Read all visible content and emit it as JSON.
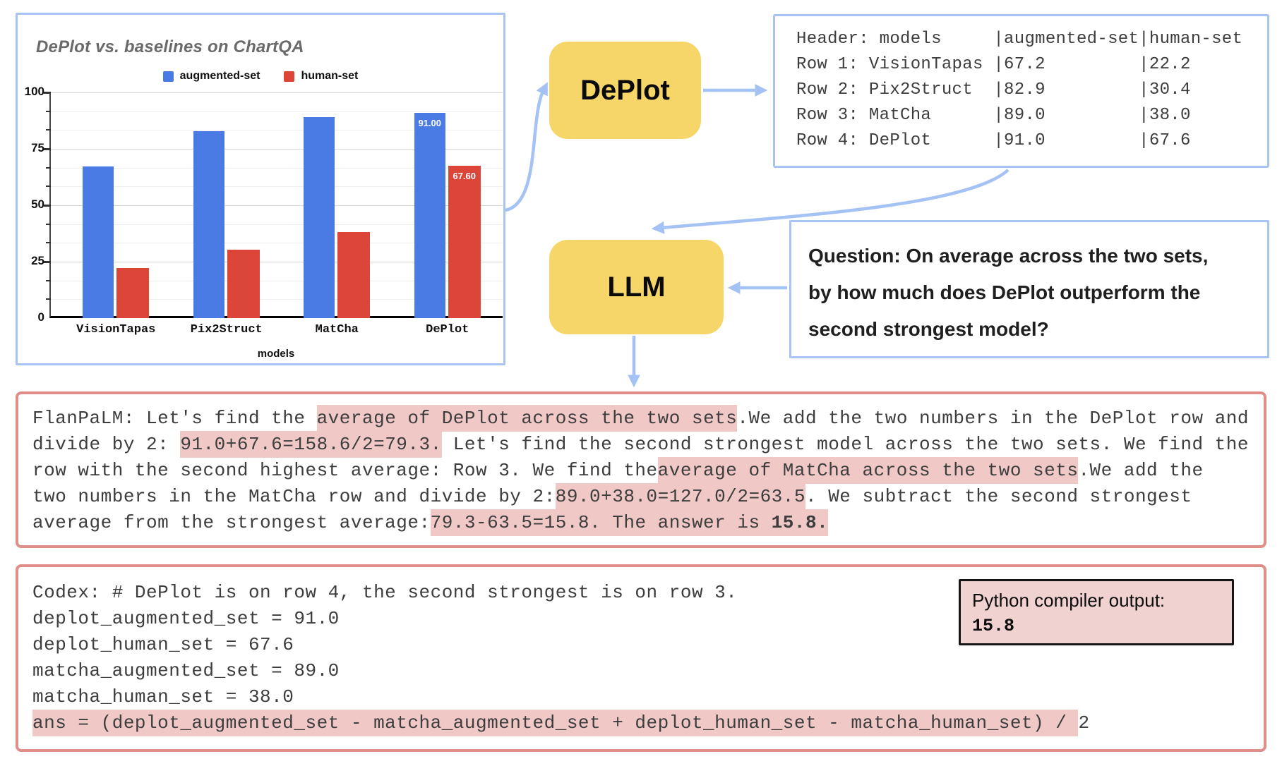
{
  "colors": {
    "panel_border_blue": "#a7c4f2",
    "arrow_blue": "#a4c2f4",
    "bar_blue": "#4a7be5",
    "bar_red": "#db4639",
    "node_yellow": "#f6d668",
    "pink_border": "#df8e89",
    "highlight_pink": "#f0c9c6",
    "python_box_bg": "#f0d3d1"
  },
  "chart_data": {
    "type": "bar",
    "title": "DePlot vs. baselines on ChartQA",
    "xlabel": "models",
    "ylabel": "",
    "ylim": [
      0,
      100
    ],
    "y_ticks": [
      0,
      25,
      50,
      75,
      100
    ],
    "minor_gridlines_per_major": 3,
    "grid": true,
    "legend_position": "top-center",
    "categories": [
      "VisionTapas",
      "Pix2Struct",
      "MatCha",
      "DePlot"
    ],
    "series": [
      {
        "name": "augmented-set",
        "color_key": "bar_blue",
        "values": [
          67.2,
          82.9,
          89.0,
          91.0
        ],
        "value_labels": [
          "",
          "",
          "",
          "91.00"
        ]
      },
      {
        "name": "human-set",
        "color_key": "bar_red",
        "values": [
          22.2,
          30.4,
          38.0,
          67.6
        ],
        "value_labels": [
          "",
          "",
          "",
          "67.60"
        ]
      }
    ]
  },
  "nodes": {
    "deplot_label": "DePlot",
    "llm_label": "LLM"
  },
  "table_output": {
    "lines": [
      "Header: models     |augmented-set|human-set",
      "Row 1: VisionTapas |67.2         |22.2",
      "Row 2: Pix2Struct  |82.9         |30.4",
      "Row 3: MatCha      |89.0         |38.0",
      "Row 4: DePlot      |91.0         |67.6"
    ]
  },
  "question": {
    "lines": [
      "Question: On average across the two sets,",
      "by how much does DePlot outperform the",
      "second strongest model?"
    ]
  },
  "flanpalm": {
    "lines": [
      [
        {
          "t": "FlanPaLM: Let's find the "
        },
        {
          "t": "average of DePlot across the two sets",
          "hl": true
        },
        {
          "t": "."
        },
        {
          "t": "We add the two numbers in the DePlot row and"
        }
      ],
      [
        {
          "t": "divide by 2: "
        },
        {
          "t": "91.0+67.6=158.6/2=79.3.",
          "hl": true
        },
        {
          "t": " Let's find the second strongest model across the two sets. We find the"
        }
      ],
      [
        {
          "t": "row with the second highest average: Row 3. We find the"
        },
        {
          "t": "average of MatCha across the two sets",
          "hl": true
        },
        {
          "t": ".We add the"
        }
      ],
      [
        {
          "t": "two numbers in the MatCha row and divide by 2:"
        },
        {
          "t": "89.0+38.0=127.0/2=63.5",
          "hl": true
        },
        {
          "t": ". We subtract the second strongest"
        }
      ],
      [
        {
          "t": "average from the strongest average:"
        },
        {
          "t": "79.3-63.5=15.8. The answer is ",
          "hl": true
        },
        {
          "t": "15.8.",
          "hl": true,
          "b": true
        }
      ]
    ]
  },
  "codex": {
    "lines": [
      [
        {
          "t": "Codex: # DePlot is on row 4, the second strongest is on row 3."
        }
      ],
      [
        {
          "t": "deplot_augmented_set = 91.0"
        }
      ],
      [
        {
          "t": "deplot_human_set = 67.6"
        }
      ],
      [
        {
          "t": "matcha_augmented_set = 89.0"
        }
      ],
      [
        {
          "t": "matcha_human_set = 38.0"
        }
      ],
      [
        {
          "t": "ans = (deplot_augmented_set - matcha_augmented_set + deplot_human_set - matcha_human_set) / ",
          "hl": true
        },
        {
          "t": "2"
        }
      ]
    ]
  },
  "python_output": {
    "label": "Python compiler output:",
    "value": "15.8"
  }
}
